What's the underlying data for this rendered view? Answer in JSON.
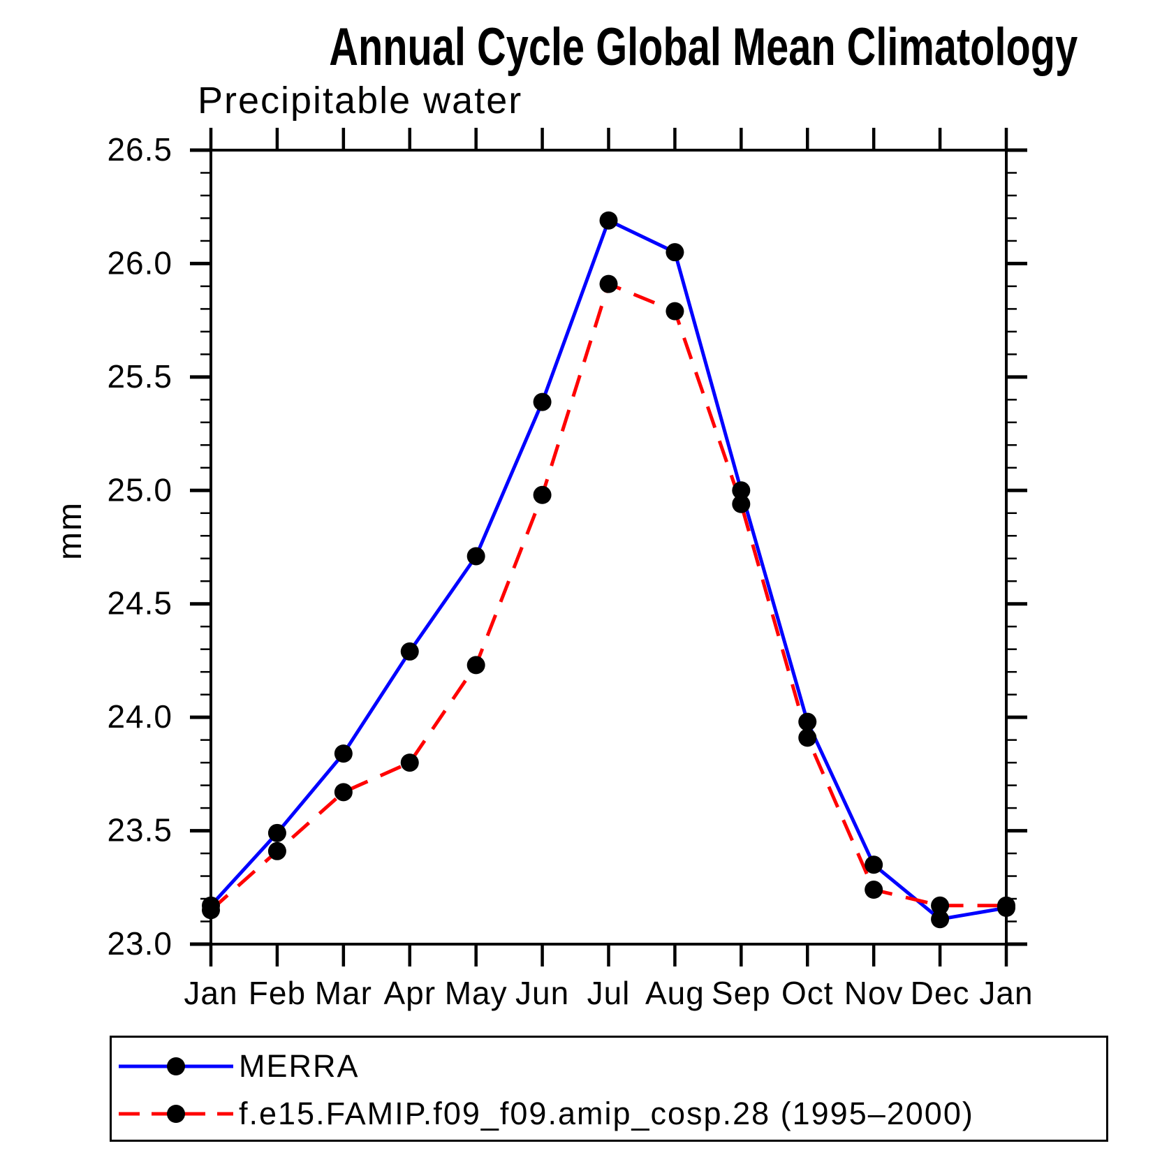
{
  "chart_data": {
    "type": "line",
    "title": "Annual Cycle Global Mean Climatology",
    "subtitle": "Precipitable water",
    "ylabel": "mm",
    "xlabel": "",
    "categories": [
      "Jan",
      "Feb",
      "Mar",
      "Apr",
      "May",
      "Jun",
      "Jul",
      "Aug",
      "Sep",
      "Oct",
      "Nov",
      "Dec",
      "Jan"
    ],
    "series": [
      {
        "name": "MERRA",
        "color": "#0000ff",
        "line_style": "solid",
        "marker": "filled-circle",
        "marker_color": "#000000",
        "values": [
          23.17,
          23.49,
          23.84,
          24.29,
          24.71,
          25.39,
          26.19,
          26.05,
          25.0,
          23.98,
          23.35,
          23.11,
          23.16
        ]
      },
      {
        "name": "f.e15.FAMIP.f09_f09.amip_cosp.28 (1995–2000)",
        "color": "#ff0000",
        "line_style": "dashed",
        "marker": "filled-circle",
        "marker_color": "#000000",
        "values": [
          23.15,
          23.41,
          23.67,
          23.8,
          24.23,
          24.98,
          25.91,
          25.79,
          24.94,
          23.91,
          23.24,
          23.17,
          23.17
        ]
      }
    ],
    "ylim": [
      23.0,
      26.5
    ],
    "ytick_step": 0.5,
    "yminor_step": 0.1,
    "ytick_labels": [
      "23.0",
      "23.5",
      "24.0",
      "24.5",
      "25.0",
      "25.5",
      "26.0",
      "26.5"
    ],
    "grid": false,
    "legend_position": "bottom",
    "axis_color": "#000000",
    "frame": "box-with-outward-ticks"
  }
}
